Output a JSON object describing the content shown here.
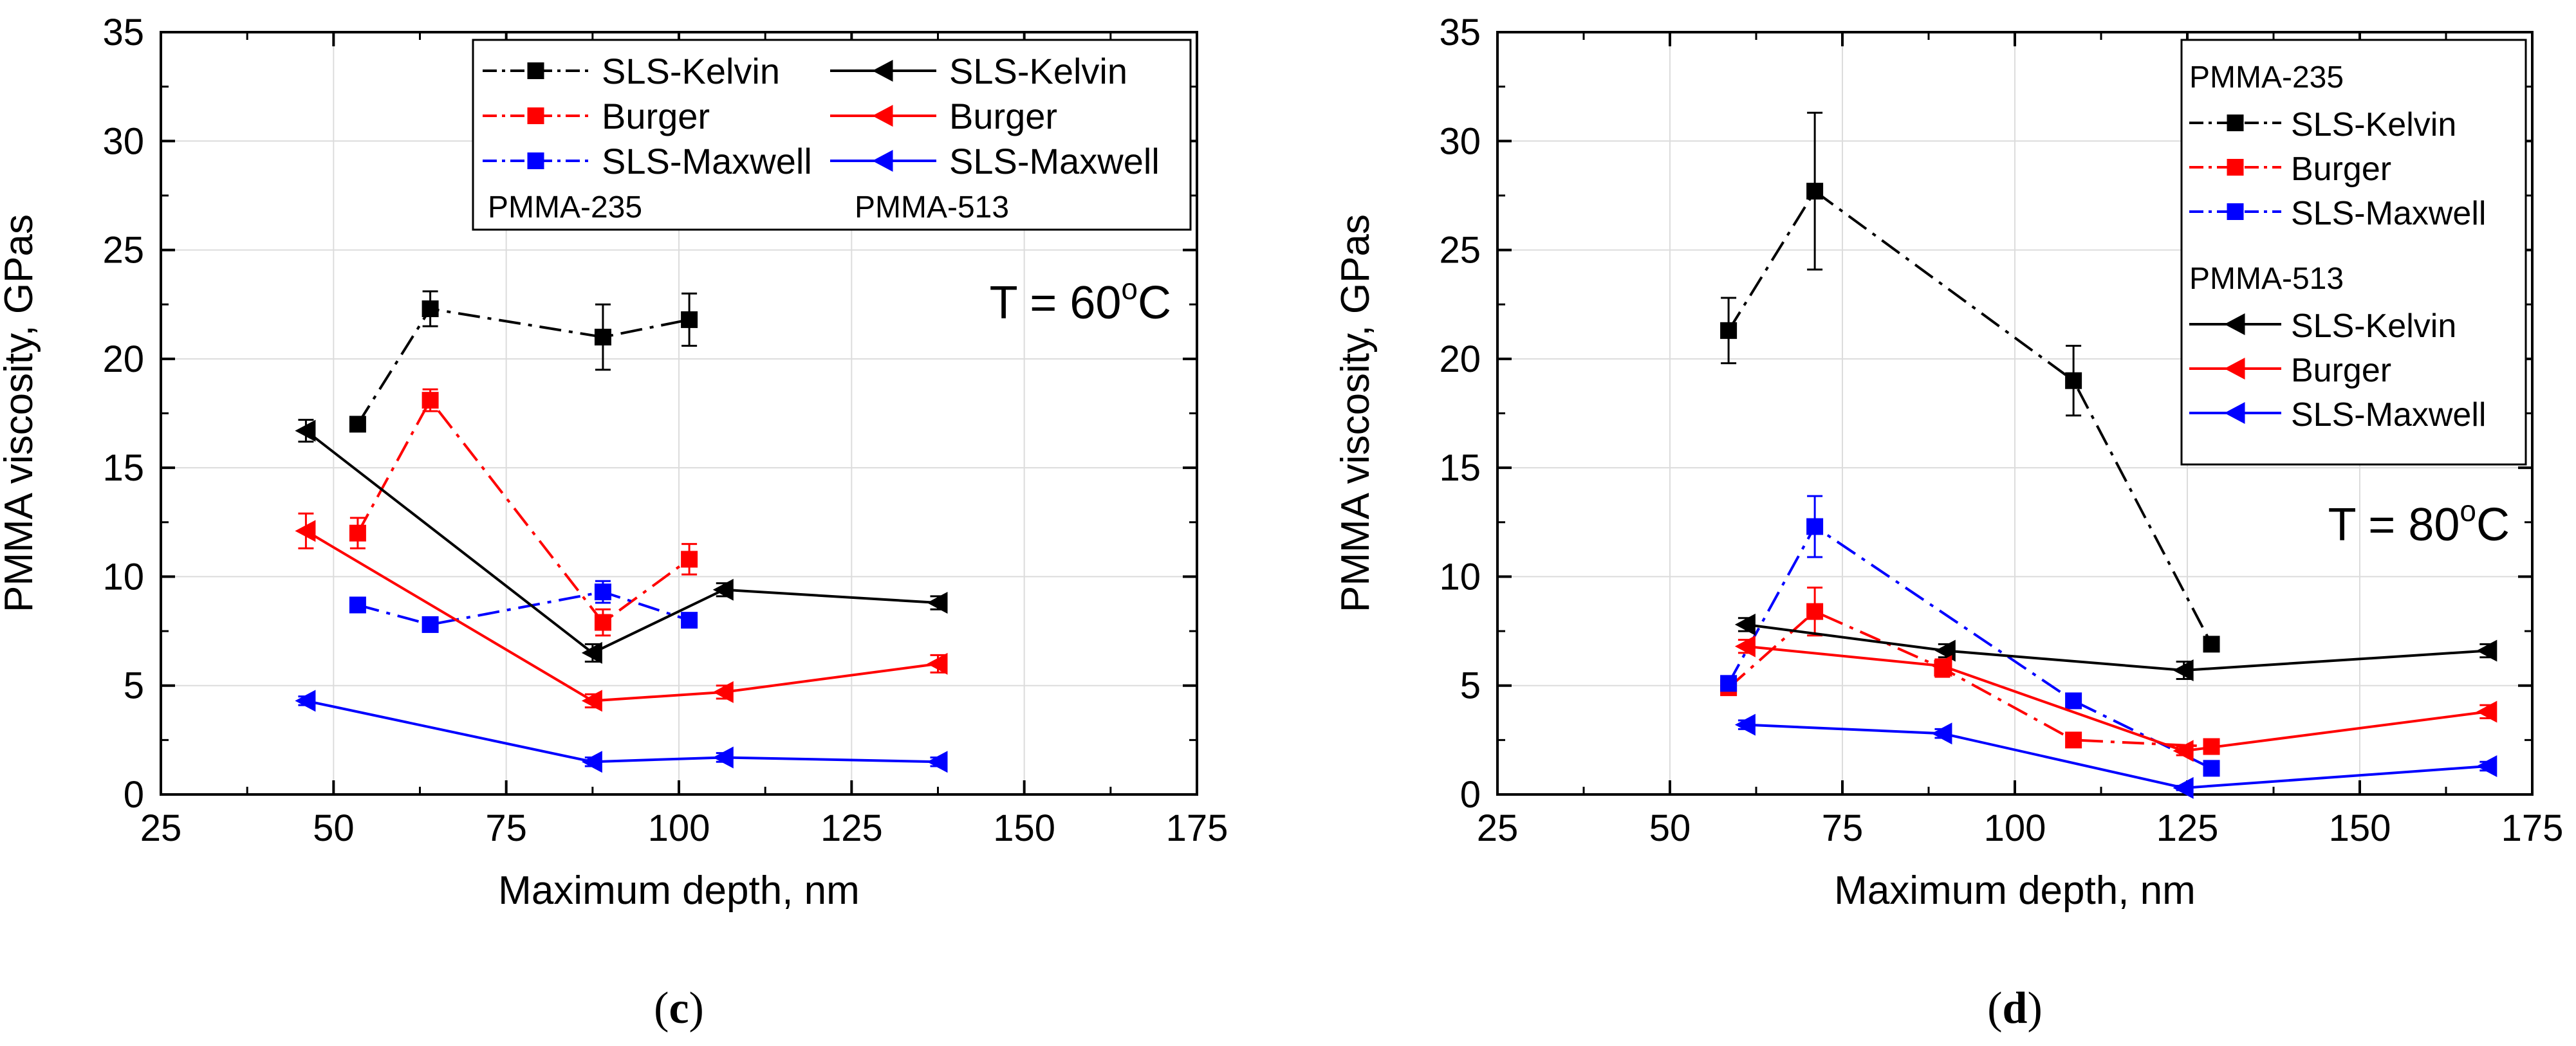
{
  "colors": {
    "SLS-Kelvin": "#000000",
    "Burger": "#ff0000",
    "SLS-Maxwell": "#0000ff",
    "grid": "#dcdcdc",
    "axis": "#000000"
  },
  "chart_data": [
    {
      "panel": "(c)",
      "panel_prefix": "(",
      "panel_letter": "c",
      "panel_suffix": ")",
      "type": "line",
      "title": "",
      "xlabel": "Maximum depth, nm",
      "ylabel": "PMMA viscosity, GPas",
      "xlim": [
        25,
        175
      ],
      "ylim": [
        0,
        35
      ],
      "xticks": [
        25,
        50,
        75,
        100,
        125,
        150,
        175
      ],
      "yticks": [
        0,
        5,
        10,
        15,
        20,
        25,
        30,
        35
      ],
      "grid": true,
      "annotation": {
        "prefix": "T = 60",
        "sup": "o",
        "suffix": "C"
      },
      "legend": {
        "placement": "top-right",
        "layout": "two-column",
        "group_labels": [
          "PMMA-235",
          "PMMA-513"
        ],
        "entries": [
          "SLS-Kelvin",
          "Burger",
          "SLS-Maxwell",
          "SLS-Kelvin",
          "Burger",
          "SLS-Maxwell"
        ]
      },
      "series": [
        {
          "name": "SLS-Kelvin",
          "group": "PMMA-235",
          "line": "dashdot",
          "marker": "square",
          "color": "#000000",
          "x": [
            53.5,
            64,
            89,
            101.5
          ],
          "y": [
            17.0,
            22.3,
            21.0,
            21.8
          ],
          "err": [
            0.3,
            0.8,
            1.5,
            1.2
          ]
        },
        {
          "name": "Burger",
          "group": "PMMA-235",
          "line": "dashdot",
          "marker": "square",
          "color": "#ff0000",
          "x": [
            53.5,
            64,
            89,
            101.5
          ],
          "y": [
            12.0,
            18.1,
            7.9,
            10.8
          ],
          "err": [
            0.7,
            0.5,
            0.6,
            0.7
          ]
        },
        {
          "name": "SLS-Maxwell",
          "group": "PMMA-235",
          "line": "dashdot",
          "marker": "square",
          "color": "#0000ff",
          "x": [
            53.5,
            64,
            89,
            101.5
          ],
          "y": [
            8.7,
            7.8,
            9.3,
            8.0
          ],
          "err": [
            0.2,
            0.2,
            0.5,
            0.3
          ]
        },
        {
          "name": "SLS-Kelvin",
          "group": "PMMA-513",
          "line": "solid",
          "marker": "triangle-left",
          "color": "#000000",
          "x": [
            46,
            87.5,
            106.5,
            137.5
          ],
          "y": [
            16.7,
            6.5,
            9.4,
            8.8
          ],
          "err": [
            0.5,
            0.4,
            0.3,
            0.3
          ]
        },
        {
          "name": "Burger",
          "group": "PMMA-513",
          "line": "solid",
          "marker": "triangle-left",
          "color": "#ff0000",
          "x": [
            46,
            87.5,
            106.5,
            137.5
          ],
          "y": [
            12.1,
            4.3,
            4.7,
            6.0
          ],
          "err": [
            0.8,
            0.3,
            0.3,
            0.4
          ]
        },
        {
          "name": "SLS-Maxwell",
          "group": "PMMA-513",
          "line": "solid",
          "marker": "triangle-left",
          "color": "#0000ff",
          "x": [
            46,
            87.5,
            106.5,
            137.5
          ],
          "y": [
            4.3,
            1.5,
            1.7,
            1.5
          ],
          "err": [
            0.2,
            0.2,
            0.2,
            0.2
          ]
        }
      ]
    },
    {
      "panel": "(d)",
      "panel_prefix": "(",
      "panel_letter": "d",
      "panel_suffix": ")",
      "type": "line",
      "title": "",
      "xlabel": "Maximum depth, nm",
      "ylabel": "PMMA viscosity, GPas",
      "xlim": [
        25,
        175
      ],
      "ylim": [
        0,
        35
      ],
      "xticks": [
        25,
        50,
        75,
        100,
        125,
        150,
        175
      ],
      "yticks": [
        0,
        5,
        10,
        15,
        20,
        25,
        30,
        35
      ],
      "grid": true,
      "annotation": {
        "prefix": "T = 80",
        "sup": "o",
        "suffix": "C"
      },
      "legend": {
        "placement": "top-right",
        "layout": "one-column",
        "group_labels": [
          "PMMA-235",
          "PMMA-513"
        ],
        "entries": [
          "SLS-Kelvin",
          "Burger",
          "SLS-Maxwell",
          "SLS-Kelvin",
          "Burger",
          "SLS-Maxwell"
        ]
      },
      "series": [
        {
          "name": "SLS-Kelvin",
          "group": "PMMA-235",
          "line": "dashdot",
          "marker": "square",
          "color": "#000000",
          "x": [
            58.5,
            71,
            108.5,
            128.5
          ],
          "y": [
            21.3,
            27.7,
            19.0,
            6.9
          ],
          "err": [
            1.5,
            3.6,
            1.6,
            0.3
          ]
        },
        {
          "name": "Burger",
          "group": "PMMA-235",
          "line": "dashdot",
          "marker": "square",
          "color": "#ff0000",
          "x": [
            58.5,
            71,
            89.5,
            108.5,
            128.5
          ],
          "y": [
            4.9,
            8.4,
            5.8,
            2.5,
            2.2
          ],
          "err": [
            0.3,
            1.1,
            0.4,
            0.2,
            0.2
          ]
        },
        {
          "name": "SLS-Maxwell",
          "group": "PMMA-235",
          "line": "dashdot",
          "marker": "square",
          "color": "#0000ff",
          "x": [
            58.5,
            71,
            108.5,
            128.5
          ],
          "y": [
            5.1,
            12.3,
            4.3,
            1.2
          ],
          "err": [
            0.3,
            1.4,
            0.2,
            0.2
          ]
        },
        {
          "name": "SLS-Kelvin",
          "group": "PMMA-513",
          "line": "solid",
          "marker": "triangle-left",
          "color": "#000000",
          "x": [
            61,
            90,
            124.5,
            168.5
          ],
          "y": [
            7.8,
            6.6,
            5.7,
            6.6
          ],
          "err": [
            0.3,
            0.3,
            0.4,
            0.3
          ]
        },
        {
          "name": "Burger",
          "group": "PMMA-513",
          "line": "solid",
          "marker": "triangle-left",
          "color": "#ff0000",
          "x": [
            61,
            89.5,
            124.5,
            168.5
          ],
          "y": [
            6.8,
            5.9,
            2.0,
            3.8
          ],
          "err": [
            0.3,
            0.3,
            0.2,
            0.3
          ]
        },
        {
          "name": "SLS-Maxwell",
          "group": "PMMA-513",
          "line": "solid",
          "marker": "triangle-left",
          "color": "#0000ff",
          "x": [
            61,
            89.5,
            124.5,
            168.5
          ],
          "y": [
            3.2,
            2.8,
            0.3,
            1.3
          ],
          "err": [
            0.2,
            0.2,
            0.1,
            0.2
          ]
        }
      ]
    }
  ]
}
